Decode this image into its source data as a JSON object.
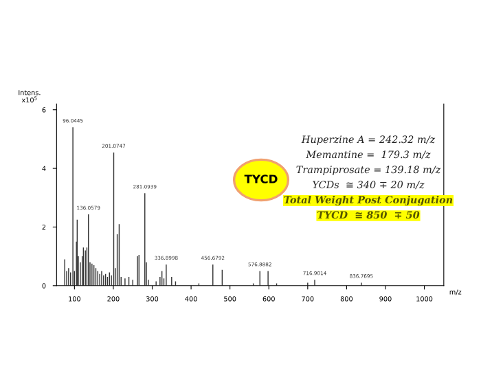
{
  "chart_data": {
    "type": "bar",
    "xlabel": "m/z",
    "ylabel": "Intens.\nx10$^{5}$",
    "color": "#333333",
    "x": [
      75,
      80,
      85,
      90,
      96,
      100,
      105,
      107,
      110,
      115,
      120,
      123,
      128,
      132,
      136,
      140,
      145,
      150,
      155,
      160,
      165,
      170,
      175,
      180,
      185,
      190,
      195,
      201,
      205,
      210,
      215,
      220,
      230,
      240,
      250,
      262,
      266,
      281,
      285,
      290,
      310,
      320,
      325,
      330,
      336,
      350,
      360,
      420,
      456,
      480,
      560,
      577,
      598,
      620,
      700,
      718,
      838
    ],
    "values": [
      0.9,
      0.5,
      0.6,
      0.45,
      5.4,
      0.5,
      1.5,
      2.25,
      1.0,
      0.8,
      1.0,
      1.3,
      1.2,
      1.3,
      2.43,
      0.8,
      0.75,
      0.7,
      0.6,
      0.5,
      0.4,
      0.5,
      0.35,
      0.4,
      0.3,
      0.45,
      0.35,
      4.54,
      0.6,
      1.75,
      2.1,
      0.3,
      0.25,
      0.3,
      0.2,
      1.0,
      1.05,
      3.15,
      0.8,
      0.2,
      0.15,
      0.3,
      0.5,
      0.25,
      0.72,
      0.3,
      0.15,
      0.08,
      0.72,
      0.54,
      0.08,
      0.5,
      0.5,
      0.08,
      0.1,
      0.2,
      0.1
    ],
    "xlim": [
      54,
      1050
    ],
    "xticks": [
      100,
      200,
      300,
      400,
      500,
      600,
      700,
      800,
      900,
      1000
    ],
    "ylim": [
      0,
      6.2
    ],
    "yticks": [
      0,
      2,
      4,
      6
    ],
    "grid": false,
    "annotations": [
      {
        "text": "96.0445",
        "x": 96,
        "y": 5.4
      },
      {
        "text": "201.0747",
        "x": 201,
        "y": 4.54
      },
      {
        "text": "136.0579",
        "x": 136,
        "y": 2.43
      },
      {
        "text": "281.0939",
        "x": 281,
        "y": 3.15
      },
      {
        "text": "336.8998",
        "x": 336,
        "y": 0.72
      },
      {
        "text": "456.6792",
        "x": 456,
        "y": 0.72
      },
      {
        "text": "576.8882",
        "x": 577,
        "y": 0.5
      },
      {
        "text": "716.9014",
        "x": 718,
        "y": 0.2
      },
      {
        "text": "836.7695",
        "x": 838,
        "y": 0.1
      },
      "TYCD",
      "Huperzine A = 242.32 m/z",
      "Memantine =  179.3 m/z",
      "Trampiprosate = 139.18 m/z",
      "YCDs  ≅ 340 ∓ 20 m/z",
      "Total Weight Post Conjugation",
      "TYCD  ≅ 850  ∓ 50"
    ]
  }
}
